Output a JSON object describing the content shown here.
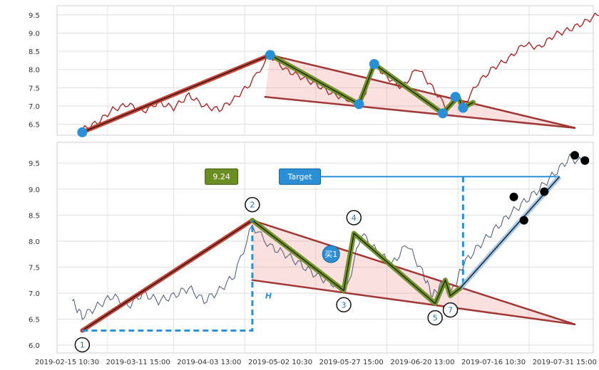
{
  "chart_data": [
    {
      "type": "line",
      "panel": "top",
      "ylim": [
        6.2,
        9.75
      ],
      "yticks": [
        "6.5",
        "7.0",
        "7.5",
        "8.0",
        "8.5",
        "9.0",
        "9.5"
      ],
      "ytick_values": [
        6.5,
        7.0,
        7.5,
        8.0,
        8.5,
        9.0,
        9.5
      ],
      "grid": true,
      "series": [
        {
          "name": "",
          "color": "#a52a2a",
          "style": "line",
          "points": [
            [
              0.03,
              6.35
            ],
            [
              0.06,
              6.55
            ],
            [
              0.09,
              6.9
            ],
            [
              0.12,
              7.05
            ],
            [
              0.15,
              6.85
            ],
            [
              0.18,
              7.1
            ],
            [
              0.21,
              6.95
            ],
            [
              0.24,
              7.3
            ],
            [
              0.27,
              7.0
            ],
            [
              0.3,
              6.9
            ],
            [
              0.33,
              7.2
            ],
            [
              0.36,
              7.6
            ],
            [
              0.4,
              8.4
            ],
            [
              0.43,
              8.0
            ],
            [
              0.46,
              7.8
            ],
            [
              0.49,
              7.6
            ],
            [
              0.52,
              7.35
            ],
            [
              0.55,
              7.2
            ],
            [
              0.58,
              7.05
            ],
            [
              0.605,
              8.15
            ],
            [
              0.63,
              7.8
            ],
            [
              0.66,
              7.5
            ],
            [
              0.69,
              8.05
            ],
            [
              0.72,
              7.5
            ],
            [
              0.75,
              6.9
            ],
            [
              0.76,
              7.2
            ],
            [
              0.78,
              7.0
            ],
            [
              0.81,
              7.65
            ],
            [
              0.84,
              8.05
            ],
            [
              0.87,
              8.3
            ],
            [
              0.9,
              8.7
            ],
            [
              0.93,
              8.6
            ],
            [
              0.96,
              8.95
            ],
            [
              0.99,
              9.1
            ],
            [
              1.02,
              9.3
            ],
            [
              1.05,
              9.55
            ],
            [
              1.08,
              9.65
            ]
          ]
        }
      ],
      "pattern_lines": [
        {
          "color": "#c0392b",
          "points": [
            [
              0.03,
              6.28
            ],
            [
              0.4,
              8.4
            ]
          ]
        },
        {
          "color": "#9b2d2d",
          "points": [
            [
              0.4,
              8.4
            ],
            [
              1.0,
              6.4
            ]
          ]
        },
        {
          "color": "#9b2d2d",
          "points": [
            [
              0.39,
              7.25
            ],
            [
              1.0,
              6.4
            ]
          ]
        },
        {
          "color": "#6b8e23",
          "points": [
            [
              0.4,
              8.4
            ],
            [
              0.575,
              7.05
            ],
            [
              0.605,
              8.15
            ],
            [
              0.74,
              6.8
            ],
            [
              0.77,
              7.25
            ],
            [
              0.78,
              6.95
            ],
            [
              0.8,
              7.1
            ]
          ]
        }
      ],
      "markers": [
        [
          0.03,
          6.28
        ],
        [
          0.4,
          8.4
        ],
        [
          0.575,
          7.05
        ],
        [
          0.605,
          8.15
        ],
        [
          0.74,
          6.8
        ],
        [
          0.765,
          7.25
        ],
        [
          0.78,
          6.95
        ]
      ],
      "marker_color": "#2b8fd6"
    },
    {
      "type": "line",
      "panel": "bottom",
      "ylim": [
        5.85,
        9.9
      ],
      "yticks": [
        "6.0",
        "6.5",
        "7.0",
        "7.5",
        "8.0",
        "8.5",
        "9.0",
        "9.5"
      ],
      "ytick_values": [
        6.0,
        6.5,
        7.0,
        7.5,
        8.0,
        8.5,
        9.0,
        9.5
      ],
      "xticks": [
        "2019-02-15 10:30",
        "2019-03-11 15:00",
        "2019-04-03 13:00",
        "2019-05-02 10:30",
        "2019-05-27 15:00",
        "2019-06-20 13:00",
        "2019-07-16 10:30",
        "2019-07-31 15:00"
      ],
      "grid": true,
      "series": [
        {
          "name": "",
          "color": "#4a5670",
          "style": "bars",
          "points": [
            [
              0.01,
              6.85
            ],
            [
              0.03,
              6.55
            ],
            [
              0.06,
              6.75
            ],
            [
              0.09,
              6.95
            ],
            [
              0.12,
              6.75
            ],
            [
              0.15,
              7.0
            ],
            [
              0.18,
              6.85
            ],
            [
              0.21,
              6.95
            ],
            [
              0.24,
              7.1
            ],
            [
              0.27,
              6.85
            ],
            [
              0.3,
              7.05
            ],
            [
              0.33,
              7.35
            ],
            [
              0.365,
              8.3
            ],
            [
              0.4,
              7.9
            ],
            [
              0.43,
              7.75
            ],
            [
              0.46,
              7.55
            ],
            [
              0.49,
              7.35
            ],
            [
              0.52,
              7.2
            ],
            [
              0.55,
              7.05
            ],
            [
              0.58,
              8.15
            ],
            [
              0.61,
              7.8
            ],
            [
              0.64,
              7.55
            ],
            [
              0.67,
              7.95
            ],
            [
              0.7,
              7.4
            ],
            [
              0.72,
              6.95
            ],
            [
              0.74,
              7.2
            ],
            [
              0.76,
              7.05
            ],
            [
              0.78,
              7.55
            ],
            [
              0.81,
              7.9
            ],
            [
              0.84,
              8.2
            ],
            [
              0.87,
              8.5
            ],
            [
              0.9,
              8.75
            ],
            [
              0.93,
              9.0
            ],
            [
              0.96,
              9.3
            ],
            [
              0.99,
              9.6
            ],
            [
              1.02,
              9.5
            ]
          ]
        }
      ],
      "pattern_lines": [
        {
          "color": "#c0392b",
          "points": [
            [
              0.03,
              6.28
            ],
            [
              0.365,
              8.4
            ]
          ]
        },
        {
          "color": "#9b2d2d",
          "points": [
            [
              0.365,
              8.4
            ],
            [
              1.0,
              6.4
            ]
          ]
        },
        {
          "color": "#9b2d2d",
          "points": [
            [
              0.365,
              7.25
            ],
            [
              1.0,
              6.4
            ]
          ]
        },
        {
          "color": "#6b8e23",
          "points": [
            [
              0.365,
              8.4
            ],
            [
              0.545,
              7.05
            ],
            [
              0.565,
              8.15
            ],
            [
              0.725,
              6.8
            ],
            [
              0.745,
              7.25
            ],
            [
              0.755,
              6.95
            ],
            [
              0.775,
              7.1
            ]
          ]
        }
      ],
      "labels": [
        {
          "text": "1",
          "x": 0.03,
          "y": 6.28,
          "pos": "below"
        },
        {
          "text": "2",
          "x": 0.365,
          "y": 8.4,
          "pos": "above"
        },
        {
          "text": "3",
          "x": 0.545,
          "y": 7.05,
          "pos": "below"
        },
        {
          "text": "4",
          "x": 0.565,
          "y": 8.15,
          "pos": "above"
        },
        {
          "text": "5",
          "x": 0.725,
          "y": 6.8,
          "pos": "below"
        },
        {
          "text": "7",
          "x": 0.755,
          "y": 6.95,
          "pos": "below"
        }
      ],
      "annotations": {
        "price_label": "9.24",
        "target_label": "Target",
        "buy_label": "买1",
        "h_label": "H"
      }
    }
  ]
}
